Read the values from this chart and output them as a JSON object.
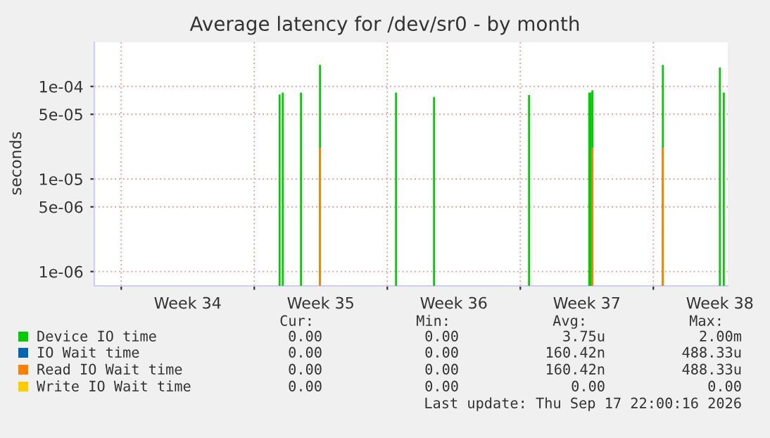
{
  "chart_data": {
    "type": "bar",
    "title": "Average latency for /dev/sr0 - by month",
    "ylabel": "seconds",
    "log": "y",
    "xlim": [
      "2026-08-15T14:00",
      "2026-09-17T22:00"
    ],
    "xticks": [
      {
        "value": "2026-08-17",
        "label": null
      },
      {
        "value": "2026-08-20T12:00",
        "label": "Week 34"
      },
      {
        "value": "2026-08-24",
        "label": null
      },
      {
        "value": "2026-08-27T12:00",
        "label": "Week 35"
      },
      {
        "value": "2026-08-31",
        "label": null
      },
      {
        "value": "2026-09-03T12:00",
        "label": "Week 36"
      },
      {
        "value": "2026-09-07",
        "label": null
      },
      {
        "value": "2026-09-10T12:00",
        "label": "Week 37"
      },
      {
        "value": "2026-09-14",
        "label": null
      },
      {
        "value": "2026-09-17T12:00",
        "label": "Week 38"
      }
    ],
    "ylim": [
      7e-07,
      0.0003
    ],
    "yticks": [
      {
        "value": 1e-06,
        "label": "1e-06"
      },
      {
        "value": 5e-06,
        "label": "5e-06"
      },
      {
        "value": 1e-05,
        "label": "1e-05"
      },
      {
        "value": 5e-05,
        "label": "5e-05"
      },
      {
        "value": 0.0001,
        "label": "1e-04"
      }
    ],
    "grid": true,
    "legend": "bottom",
    "series": [
      {
        "name": "Device IO time",
        "color": "#00cc00",
        "x": [
          "2026-08-25T08:00",
          "2026-08-25T12:00",
          "2026-08-26T11:00",
          "2026-08-27T11:00",
          "2026-08-31T11:00",
          "2026-09-02T11:00",
          "2026-09-07T11:00",
          "2026-09-10T15:00",
          "2026-09-10T17:00",
          "2026-09-10T19:00",
          "2026-09-14T12:00",
          "2026-09-17T12:00",
          "2026-09-17T17:00"
        ],
        "values": [
          8.1e-05,
          8.5e-05,
          8.5e-05,
          0.00017,
          8.5e-05,
          7.6e-05,
          8e-05,
          8.5e-05,
          8.5e-05,
          9e-05,
          0.00017,
          0.00016,
          8.5e-05
        ]
      },
      {
        "name": "IO Wait time",
        "color": "#0066b3"
      },
      {
        "name": "Read IO Wait time",
        "color": "#ff8000",
        "x": [
          "2026-08-27T11:00",
          "2026-09-10T19:00",
          "2026-09-14T12:00"
        ],
        "values": [
          2.1e-05,
          2.1e-05,
          2.1e-05
        ]
      },
      {
        "name": "Write IO Wait time",
        "color": "#ffcc00"
      }
    ],
    "annotations": [
      "Cur:",
      "Min:",
      "Avg:",
      "Max:",
      "0.00",
      "0.00",
      "3.75u",
      "2.00m",
      "0.00",
      "0.00",
      "160.42n",
      "488.33u",
      "0.00",
      "0.00",
      "160.42n",
      "488.33u",
      "0.00",
      "0.00",
      "0.00",
      "0.00",
      "Last update: Thu Sep 17 22:00:16 2026"
    ]
  }
}
